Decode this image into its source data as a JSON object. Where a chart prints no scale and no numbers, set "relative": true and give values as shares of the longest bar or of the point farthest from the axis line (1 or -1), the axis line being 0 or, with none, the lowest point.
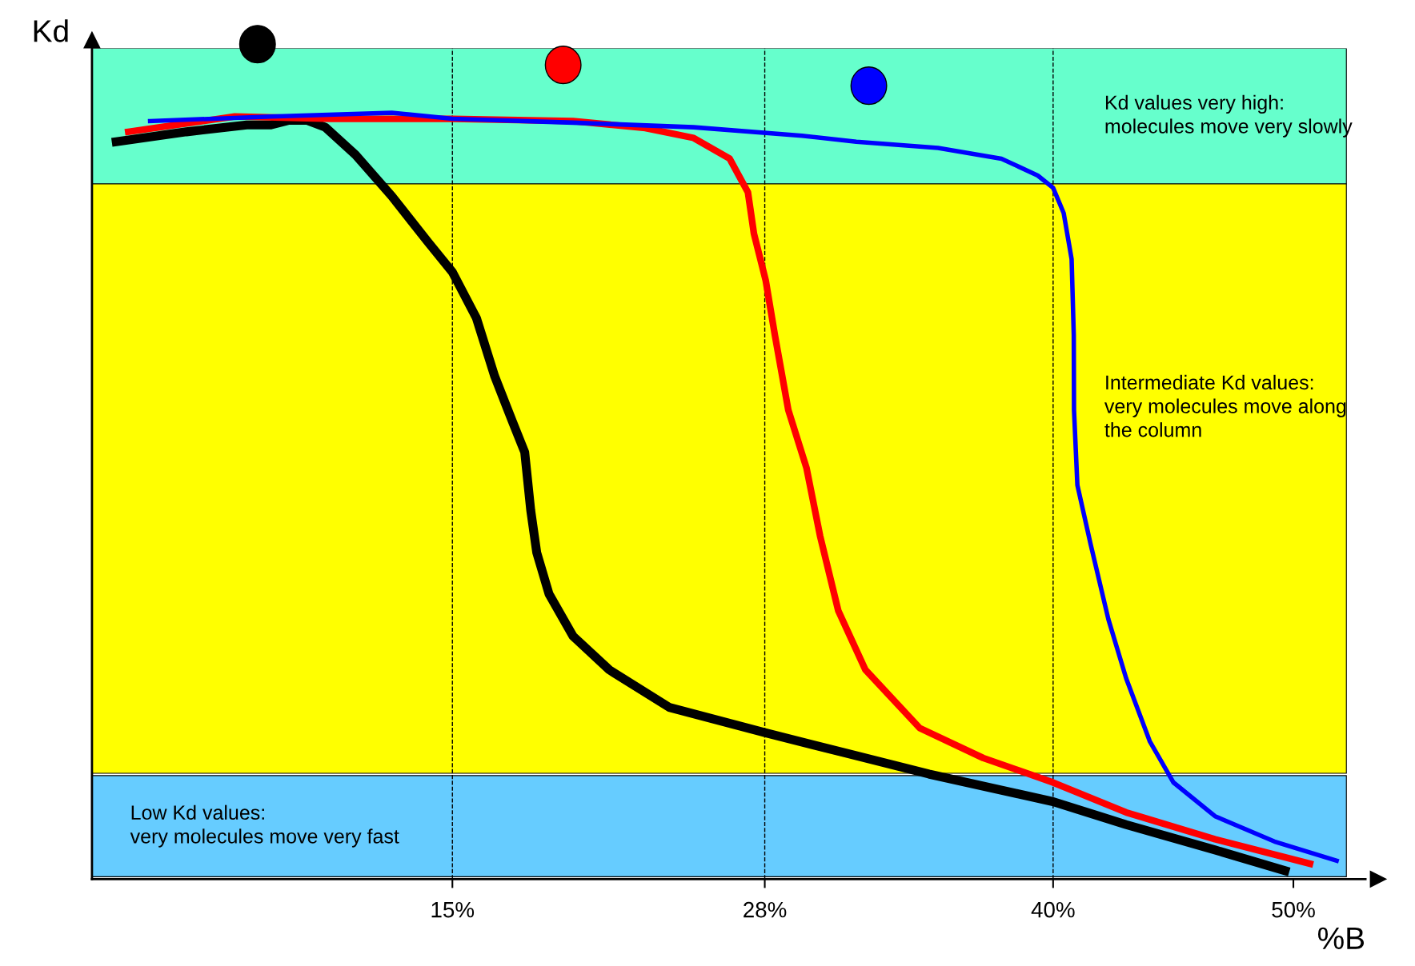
{
  "chart_data": {
    "type": "line",
    "relative": true,
    "xlabel": "%B",
    "ylabel": "Kd",
    "xlim": [
      0,
      53
    ],
    "xticks": [
      {
        "value": 15,
        "label": "15%"
      },
      {
        "value": 28,
        "label": "28%"
      },
      {
        "value": 40,
        "label": "40%"
      },
      {
        "value": 50,
        "label": "50%"
      }
    ],
    "grid": false,
    "legend": false,
    "marker": "none",
    "line_style": "solid",
    "series": [
      {
        "color": "#000000",
        "x": [
          1.01,
          3.93,
          6.44,
          7.45,
          8.2,
          8.96,
          9.71,
          10.97,
          12.48,
          13.99,
          15.0,
          16.0,
          16.76,
          17.51,
          18.01,
          18.26,
          18.51,
          19.02,
          20.02,
          21.53,
          24.03,
          28,
          31.43,
          34.83,
          40,
          43.04,
          46.74,
          49.65
        ],
        "values": [
          0.962,
          0.975,
          0.984,
          0.984,
          0.99,
          0.99,
          0.981,
          0.945,
          0.891,
          0.831,
          0.792,
          0.732,
          0.656,
          0.596,
          0.557,
          0.481,
          0.426,
          0.372,
          0.317,
          0.273,
          0.224,
          0.191,
          0.164,
          0.137,
          0.101,
          0.071,
          0.038,
          0.011
        ]
      },
      {
        "color": "#ff0000",
        "x": [
          1.51,
          5.94,
          9.96,
          15.0,
          20.02,
          23.03,
          25.04,
          26.54,
          27.3,
          27.55,
          28.04,
          28.42,
          28.98,
          29.74,
          30.3,
          31.06,
          32.19,
          34.45,
          37.09,
          40,
          43.04,
          46.74,
          50.69
        ],
        "values": [
          0.975,
          0.995,
          0.992,
          0.992,
          0.989,
          0.98,
          0.967,
          0.94,
          0.896,
          0.842,
          0.781,
          0.71,
          0.612,
          0.536,
          0.448,
          0.35,
          0.273,
          0.197,
          0.158,
          0.126,
          0.087,
          0.052,
          0.02
        ]
      },
      {
        "color": "#0000ff",
        "x": [
          2.42,
          7.45,
          12.48,
          15.0,
          20.02,
          25.04,
          29.55,
          31.81,
          35.21,
          37.85,
          39.36,
          40,
          40.44,
          40.77,
          40.86,
          40.87,
          41.01,
          41.56,
          42.3,
          43.04,
          44.02,
          45.01,
          46.74,
          49.21,
          51.8
        ],
        "values": [
          0.989,
          0.995,
          1,
          0.992,
          0.987,
          0.981,
          0.97,
          0.962,
          0.954,
          0.94,
          0.918,
          0.902,
          0.869,
          0.809,
          0.71,
          0.612,
          0.514,
          0.437,
          0.339,
          0.262,
          0.18,
          0.126,
          0.082,
          0.049,
          0.024
        ]
      }
    ],
    "bands": [
      {
        "axis": "y",
        "from": 0.907,
        "to": 1.084,
        "color": "#66ffcc",
        "label": "Kd values very high:\nmolecules move very slowly"
      },
      {
        "axis": "y",
        "from": 0.138,
        "to": 0.907,
        "color": "#ffff00",
        "label": "Intermediate Kd values:\nvery molecules move along\nthe column"
      },
      {
        "axis": "y",
        "from": 0.003,
        "to": 0.135,
        "color": "#66ccff",
        "label": "Low Kd values:\nvery molecules move very fast"
      }
    ],
    "ref_lines": [
      {
        "axis": "x",
        "value": 15,
        "label": null,
        "line_style": "dashed"
      },
      {
        "axis": "x",
        "value": 28,
        "label": null,
        "line_style": "dashed"
      },
      {
        "axis": "x",
        "value": 40,
        "label": null,
        "line_style": "dashed"
      }
    ]
  }
}
